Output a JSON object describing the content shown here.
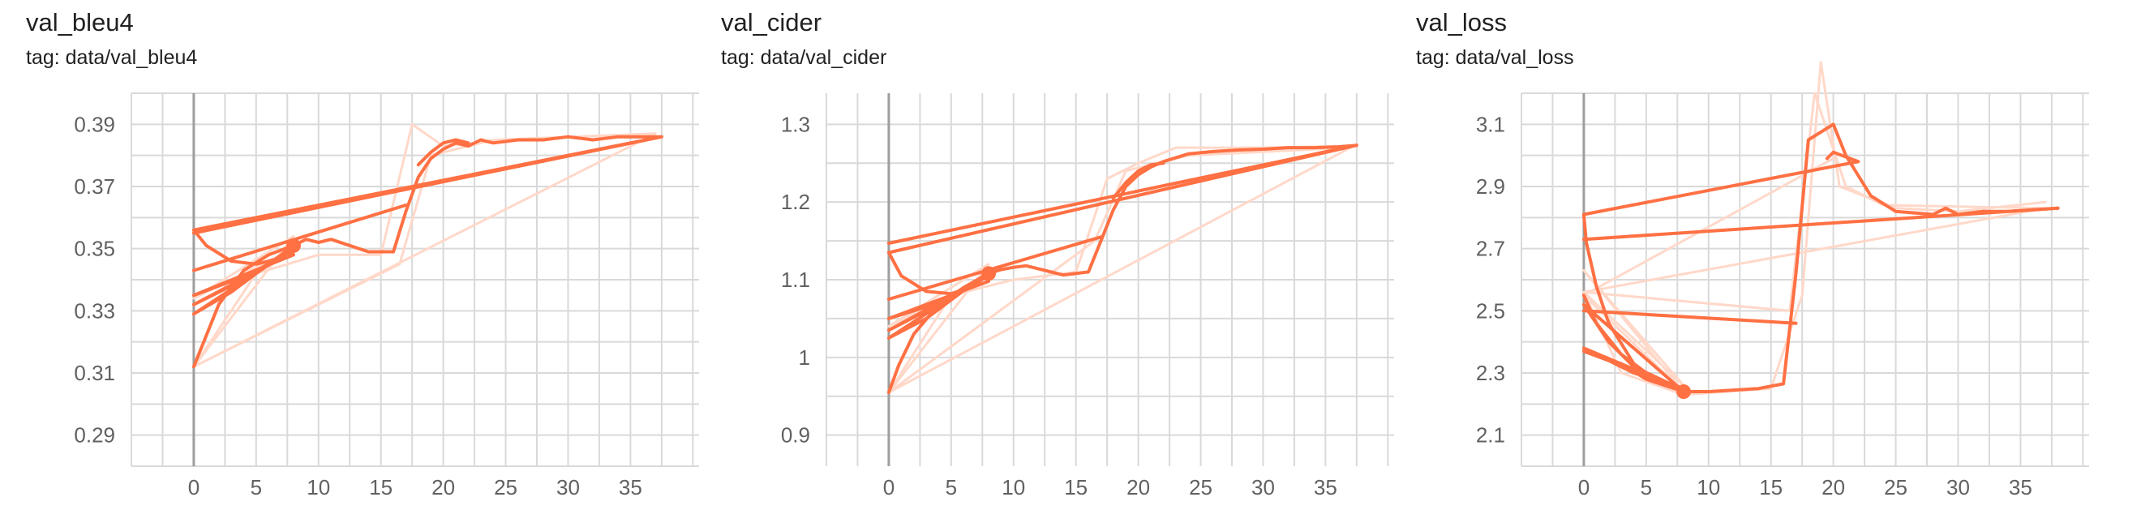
{
  "colors": {
    "smoothed": "#ff7043",
    "raw": "#ffd8c9",
    "grid": "#d9d9d9",
    "axis": "#9e9e9e",
    "text": "#616161"
  },
  "chart_data": [
    {
      "type": "line",
      "title": "val_bleu4",
      "subtitle": "tag: data/val_bleu4",
      "xlim": [
        -5,
        40.5
      ],
      "ylim": [
        0.28,
        0.4
      ],
      "x_ticks": [
        0,
        5,
        10,
        15,
        20,
        25,
        30,
        35
      ],
      "y_ticks": [
        0.29,
        0.31,
        0.33,
        0.35,
        0.37,
        0.39
      ],
      "y_tick_labels": [
        "0.29",
        "0.31",
        "0.33",
        "0.35",
        "0.37",
        "0.39"
      ],
      "grid": true,
      "series": [
        {
          "style": "raw",
          "points": [
            [
              0,
              0.312
            ],
            [
              16.5,
              0.345
            ],
            [
              19,
              0.38
            ],
            [
              24,
              0.385
            ],
            [
              37,
              0.387
            ],
            [
              0,
              0.312
            ]
          ]
        },
        {
          "style": "raw",
          "points": [
            [
              0,
              0.312
            ],
            [
              5,
              0.342
            ],
            [
              10,
              0.348
            ],
            [
              15,
              0.348
            ],
            [
              17.5,
              0.39
            ],
            [
              20,
              0.383
            ],
            [
              25,
              0.385
            ],
            [
              37,
              0.387
            ]
          ]
        },
        {
          "style": "raw",
          "points": [
            [
              0,
              0.312
            ],
            [
              8,
              0.354
            ],
            [
              0,
              0.334
            ],
            [
              8,
              0.35
            ]
          ]
        },
        {
          "style": "smoothed",
          "points": [
            [
              0,
              0.355
            ],
            [
              37.5,
              0.386
            ]
          ]
        },
        {
          "style": "smoothed",
          "points": [
            [
              0,
              0.343
            ],
            [
              17,
              0.364
            ]
          ]
        },
        {
          "style": "smoothed",
          "points": [
            [
              0,
              0.312
            ],
            [
              0.8,
              0.32
            ],
            [
              2,
              0.332
            ],
            [
              4,
              0.343
            ],
            [
              6,
              0.348
            ],
            [
              8,
              0.351
            ],
            [
              9,
              0.353
            ],
            [
              10,
              0.352
            ],
            [
              11,
              0.353
            ],
            [
              14,
              0.349
            ],
            [
              16,
              0.349
            ],
            [
              17,
              0.362
            ],
            [
              18,
              0.373
            ],
            [
              19,
              0.379
            ],
            [
              20,
              0.382
            ],
            [
              21,
              0.384
            ],
            [
              22,
              0.383
            ],
            [
              23,
              0.385
            ],
            [
              24,
              0.384
            ],
            [
              26,
              0.385
            ],
            [
              28,
              0.385
            ],
            [
              30,
              0.386
            ],
            [
              32,
              0.385
            ],
            [
              34,
              0.386
            ],
            [
              36,
              0.386
            ],
            [
              37.5,
              0.386
            ],
            [
              0,
              0.356
            ],
            [
              1,
              0.351
            ],
            [
              3,
              0.346
            ],
            [
              5,
              0.345
            ],
            [
              8,
              0.348
            ],
            [
              0,
              0.335
            ],
            [
              4,
              0.341
            ],
            [
              8,
              0.349
            ],
            [
              0,
              0.332
            ],
            [
              3,
              0.338
            ],
            [
              8,
              0.35
            ],
            [
              0,
              0.329
            ],
            [
              3,
              0.336
            ],
            [
              8,
              0.351
            ]
          ]
        },
        {
          "style": "smoothed",
          "points": [
            [
              18,
              0.377
            ],
            [
              19,
              0.381
            ],
            [
              20,
              0.384
            ],
            [
              21,
              0.385
            ],
            [
              22,
              0.384
            ]
          ]
        }
      ],
      "marker": {
        "x": 8,
        "y": 0.351
      }
    },
    {
      "type": "line",
      "title": "val_cider",
      "subtitle": "tag: data/val_cider",
      "xlim": [
        -5,
        40.5
      ],
      "ylim": [
        0.86,
        1.34
      ],
      "x_ticks": [
        0,
        5,
        10,
        15,
        20,
        25,
        30,
        35
      ],
      "y_ticks": [
        0.9,
        1.0,
        1.1,
        1.2,
        1.3
      ],
      "y_tick_labels": [
        "0.9",
        "1",
        "1.1",
        "1.2",
        "1.3"
      ],
      "grid": true,
      "series": [
        {
          "style": "raw",
          "points": [
            [
              0,
              0.955
            ],
            [
              16.5,
              1.15
            ],
            [
              19,
              1.24
            ],
            [
              24,
              1.26
            ],
            [
              37,
              1.27
            ],
            [
              0,
              0.955
            ]
          ]
        },
        {
          "style": "raw",
          "points": [
            [
              0,
              0.955
            ],
            [
              5,
              1.08
            ],
            [
              10,
              1.1
            ],
            [
              15,
              1.11
            ],
            [
              17.5,
              1.23
            ],
            [
              20,
              1.25
            ],
            [
              23,
              1.27
            ],
            [
              30,
              1.27
            ],
            [
              37,
              1.272
            ]
          ]
        },
        {
          "style": "raw",
          "points": [
            [
              0,
              0.955
            ],
            [
              8,
              1.12
            ],
            [
              0,
              1.04
            ],
            [
              8,
              1.105
            ]
          ]
        },
        {
          "style": "smoothed",
          "points": [
            [
              0,
              1.147
            ],
            [
              37.5,
              1.273
            ]
          ]
        },
        {
          "style": "smoothed",
          "points": [
            [
              0,
              1.075
            ],
            [
              17,
              1.155
            ]
          ]
        },
        {
          "style": "smoothed",
          "points": [
            [
              0,
              0.955
            ],
            [
              0.8,
              0.99
            ],
            [
              2,
              1.03
            ],
            [
              4,
              1.068
            ],
            [
              6,
              1.09
            ],
            [
              8,
              1.108
            ],
            [
              9,
              1.113
            ],
            [
              10,
              1.116
            ],
            [
              11,
              1.118
            ],
            [
              14,
              1.106
            ],
            [
              16,
              1.11
            ],
            [
              17,
              1.15
            ],
            [
              18,
              1.19
            ],
            [
              19,
              1.22
            ],
            [
              20,
              1.235
            ],
            [
              21,
              1.245
            ],
            [
              22,
              1.252
            ],
            [
              24,
              1.262
            ],
            [
              26,
              1.265
            ],
            [
              28,
              1.267
            ],
            [
              30,
              1.268
            ],
            [
              32,
              1.27
            ],
            [
              34,
              1.27
            ],
            [
              36,
              1.271
            ],
            [
              37.5,
              1.273
            ],
            [
              0,
              1.135
            ],
            [
              1,
              1.105
            ],
            [
              3,
              1.085
            ],
            [
              5,
              1.082
            ],
            [
              8,
              1.098
            ],
            [
              0,
              1.05
            ],
            [
              4,
              1.07
            ],
            [
              8,
              1.105
            ],
            [
              0,
              1.035
            ],
            [
              3,
              1.06
            ],
            [
              8,
              1.108
            ],
            [
              0,
              1.025
            ],
            [
              3,
              1.05
            ],
            [
              8,
              1.11
            ]
          ]
        },
        {
          "style": "smoothed",
          "points": [
            [
              18,
              1.205
            ],
            [
              19,
              1.225
            ],
            [
              20,
              1.24
            ],
            [
              21,
              1.248
            ],
            [
              22,
              1.25
            ]
          ]
        }
      ],
      "marker": {
        "x": 8,
        "y": 1.108
      }
    },
    {
      "type": "line",
      "title": "val_loss",
      "subtitle": "tag: data/val_loss",
      "xlim": [
        -5,
        40.5
      ],
      "ylim": [
        2.0,
        3.2
      ],
      "x_ticks": [
        0,
        5,
        10,
        15,
        20,
        25,
        30,
        35
      ],
      "y_ticks": [
        2.1,
        2.3,
        2.5,
        2.7,
        2.9,
        3.1
      ],
      "y_tick_labels": [
        "2.1",
        "2.3",
        "2.5",
        "2.7",
        "2.9",
        "3.1"
      ],
      "grid": true,
      "series": [
        {
          "style": "raw",
          "points": [
            [
              0,
              2.56
            ],
            [
              16.5,
              2.5
            ],
            [
              18.5,
              3.2
            ],
            [
              21,
              2.9
            ],
            [
              24,
              2.84
            ],
            [
              37,
              2.83
            ],
            [
              0,
              2.56
            ]
          ]
        },
        {
          "style": "raw",
          "points": [
            [
              0,
              2.56
            ],
            [
              3,
              2.3
            ],
            [
              8,
              2.23
            ],
            [
              15,
              2.25
            ],
            [
              17.5,
              2.55
            ],
            [
              19,
              3.3
            ],
            [
              20.5,
              2.9
            ],
            [
              25,
              2.83
            ],
            [
              30,
              2.82
            ],
            [
              37,
              2.85
            ]
          ]
        },
        {
          "style": "raw",
          "points": [
            [
              0,
              2.56
            ],
            [
              8,
              2.26
            ],
            [
              0,
              2.63
            ],
            [
              8,
              2.24
            ],
            [
              0,
              2.55
            ],
            [
              20,
              2.99
            ]
          ]
        },
        {
          "style": "smoothed",
          "points": [
            [
              0,
              2.73
            ],
            [
              38,
              2.83
            ]
          ]
        },
        {
          "style": "smoothed",
          "points": [
            [
              0,
              2.81
            ],
            [
              22,
              2.98
            ],
            [
              20,
              3.01
            ],
            [
              19.5,
              2.99
            ]
          ]
        },
        {
          "style": "smoothed",
          "points": [
            [
              0,
              2.5
            ],
            [
              17,
              2.46
            ]
          ]
        },
        {
          "style": "smoothed",
          "points": [
            [
              0,
              2.81
            ],
            [
              0.2,
              2.72
            ],
            [
              1,
              2.58
            ],
            [
              2,
              2.46
            ],
            [
              4,
              2.33
            ],
            [
              6,
              2.27
            ],
            [
              8,
              2.24
            ],
            [
              10,
              2.24
            ],
            [
              12,
              2.245
            ],
            [
              14,
              2.25
            ],
            [
              16,
              2.265
            ],
            [
              17,
              2.62
            ],
            [
              18,
              3.05
            ],
            [
              20,
              3.1
            ],
            [
              21,
              3.0
            ],
            [
              23,
              2.87
            ],
            [
              25,
              2.82
            ],
            [
              28,
              2.81
            ],
            [
              29,
              2.83
            ],
            [
              30,
              2.81
            ],
            [
              32,
              2.82
            ],
            [
              34,
              2.82
            ],
            [
              38,
              2.83
            ]
          ]
        },
        {
          "style": "smoothed",
          "points": [
            [
              0,
              2.55
            ],
            [
              1,
              2.46
            ],
            [
              3,
              2.36
            ],
            [
              5,
              2.3
            ],
            [
              8,
              2.24
            ],
            [
              0,
              2.52
            ],
            [
              2,
              2.4
            ],
            [
              4,
              2.32
            ],
            [
              8,
              2.245
            ],
            [
              0,
              2.38
            ],
            [
              2,
              2.34
            ],
            [
              4,
              2.3
            ],
            [
              8,
              2.25
            ],
            [
              0,
              2.37
            ],
            [
              3,
              2.33
            ],
            [
              5,
              2.28
            ],
            [
              8,
              2.24
            ]
          ]
        }
      ],
      "marker": {
        "x": 8,
        "y": 2.24
      }
    }
  ]
}
